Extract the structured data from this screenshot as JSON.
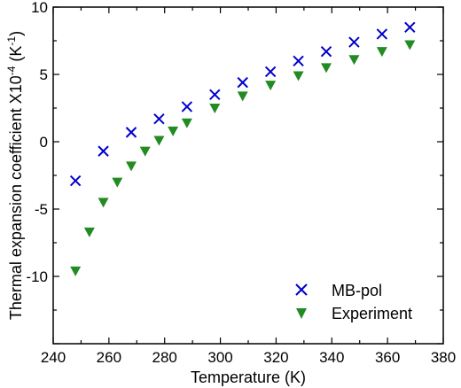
{
  "chart_data": {
    "type": "scatter",
    "xlabel": "Temperature (K)",
    "ylabel": {
      "main": "Thermal expansion coefficient X10",
      "exp": "-4",
      "unit_open": " (K",
      "unit_exp": "-1",
      "unit_close": ")"
    },
    "xlim": [
      240,
      380
    ],
    "ylim": [
      -15,
      10
    ],
    "xticks": [
      240,
      260,
      280,
      300,
      320,
      340,
      360,
      380
    ],
    "yticks": [
      -10,
      -5,
      0,
      5,
      10
    ],
    "legend_position": "bottom-right",
    "grid": false,
    "series": [
      {
        "name": "MB-pol",
        "marker": "x",
        "color": "#0000cc",
        "x": [
          248,
          258,
          268,
          278,
          288,
          298,
          308,
          318,
          328,
          338,
          348,
          358,
          368
        ],
        "y": [
          -2.9,
          -0.7,
          0.7,
          1.7,
          2.6,
          3.5,
          4.4,
          5.2,
          6.0,
          6.7,
          7.4,
          8.0,
          8.5
        ]
      },
      {
        "name": "Experiment",
        "marker": "triangle-down",
        "color": "#228b22",
        "x": [
          248,
          253,
          258,
          263,
          268,
          273,
          278,
          283,
          288,
          298,
          308,
          318,
          328,
          338,
          348,
          358,
          368
        ],
        "y": [
          -9.6,
          -6.7,
          -4.5,
          -3.0,
          -1.8,
          -0.7,
          0.1,
          0.8,
          1.4,
          2.5,
          3.4,
          4.2,
          4.9,
          5.5,
          6.1,
          6.7,
          7.2
        ]
      }
    ]
  }
}
